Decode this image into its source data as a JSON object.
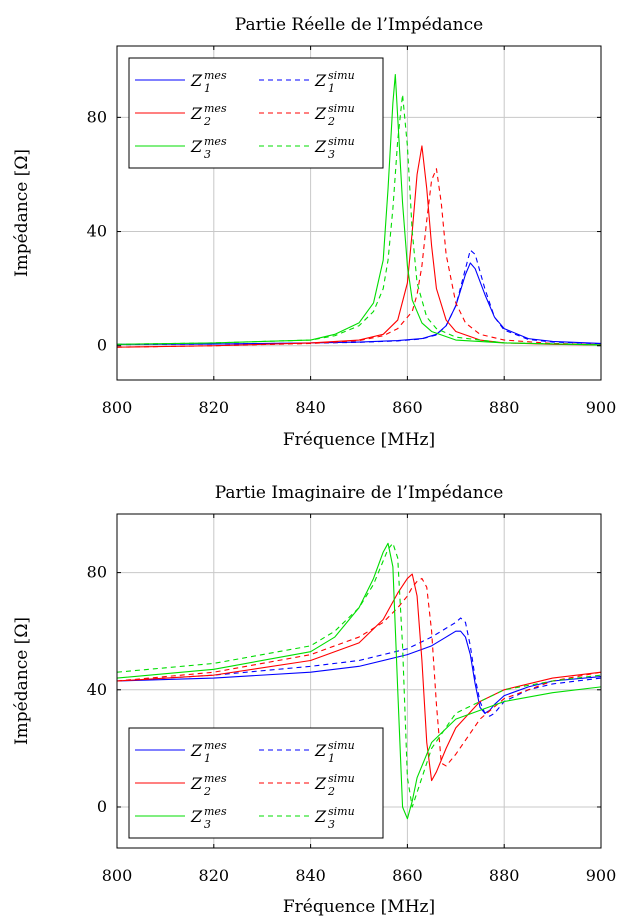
{
  "chart_data": [
    {
      "type": "line",
      "title": "Partie Réelle de l’Impédance",
      "xlabel": "Fréquence [MHz]",
      "ylabel": "Impédance [Ω]",
      "xlim": [
        800,
        900
      ],
      "ylim": [
        -12,
        105
      ],
      "xticks": [
        800,
        820,
        840,
        860,
        880,
        900
      ],
      "yticks": [
        0,
        40,
        80
      ],
      "grid": true,
      "legend_position": "top-left",
      "series": [
        {
          "name": "Z1mes",
          "color": "#0000ff",
          "dash": "solid",
          "x": [
            800,
            820,
            840,
            850,
            858,
            863,
            866,
            868,
            870,
            872,
            873,
            874,
            876,
            878,
            880,
            885,
            890,
            900
          ],
          "y": [
            0.5,
            0.6,
            1.0,
            1.3,
            1.8,
            2.5,
            4,
            7,
            14,
            25,
            29,
            27,
            18,
            10,
            6,
            2.5,
            1.5,
            0.8
          ]
        },
        {
          "name": "Z1simu",
          "color": "#0000ff",
          "dash": "dashed",
          "x": [
            800,
            820,
            840,
            850,
            858,
            863,
            866,
            868,
            870,
            872,
            873,
            874,
            876,
            878,
            880,
            885,
            890,
            900
          ],
          "y": [
            0.4,
            0.6,
            0.9,
            1.2,
            1.7,
            2.4,
            3.8,
            7,
            14,
            27,
            33.5,
            32,
            20,
            10,
            5.5,
            2.2,
            1.3,
            0.7
          ]
        },
        {
          "name": "Z2mes",
          "color": "#ff0000",
          "dash": "solid",
          "x": [
            800,
            820,
            840,
            850,
            855,
            858,
            860,
            861,
            862,
            863,
            864,
            865,
            866,
            868,
            870,
            875,
            880,
            890,
            900
          ],
          "y": [
            -0.5,
            0,
            1,
            2,
            4,
            9,
            22,
            40,
            60,
            70,
            55,
            35,
            20,
            9,
            5,
            2,
            1,
            0.5,
            0.3
          ]
        },
        {
          "name": "Z2simu",
          "color": "#ff0000",
          "dash": "dashed",
          "x": [
            800,
            820,
            840,
            850,
            855,
            858,
            861,
            862,
            863,
            864,
            865,
            866,
            867,
            868,
            870,
            872,
            875,
            880,
            890,
            900
          ],
          "y": [
            -0.5,
            0,
            0.8,
            1.8,
            3.5,
            6,
            12,
            18,
            28,
            44,
            58,
            62,
            50,
            32,
            15,
            8,
            4,
            2,
            0.8,
            0.4
          ]
        },
        {
          "name": "Z3mes",
          "color": "#00dd00",
          "dash": "solid",
          "x": [
            800,
            820,
            840,
            845,
            850,
            853,
            855,
            856,
            857,
            857.5,
            858,
            859,
            860,
            861,
            863,
            865,
            870,
            880,
            900
          ],
          "y": [
            0.5,
            1,
            2,
            4,
            8,
            15,
            30,
            55,
            85,
            95,
            80,
            50,
            28,
            16,
            8,
            5,
            2,
            1,
            0.3
          ]
        },
        {
          "name": "Z3simu",
          "color": "#00dd00",
          "dash": "dashed",
          "x": [
            800,
            820,
            840,
            845,
            850,
            853,
            855,
            856,
            857,
            858,
            859,
            860,
            861,
            862,
            864,
            866,
            870,
            880,
            900
          ],
          "y": [
            0.5,
            1,
            2,
            3.5,
            7,
            12,
            20,
            30,
            48,
            72,
            88,
            70,
            40,
            22,
            10,
            6,
            3,
            1,
            0.3
          ]
        }
      ]
    },
    {
      "type": "line",
      "title": "Partie Imaginaire de l’Impédance",
      "xlabel": "Fréquence [MHz]",
      "ylabel": "Impédance [Ω]",
      "xlim": [
        800,
        900
      ],
      "ylim": [
        -14,
        100
      ],
      "xticks": [
        800,
        820,
        840,
        860,
        880,
        900
      ],
      "yticks": [
        0,
        40,
        80
      ],
      "grid": true,
      "legend_position": "bottom-left",
      "series": [
        {
          "name": "Z1mes",
          "color": "#0000ff",
          "dash": "solid",
          "x": [
            800,
            820,
            840,
            850,
            860,
            865,
            868,
            870,
            871,
            872,
            873,
            874,
            875,
            876,
            877,
            878,
            880,
            885,
            890,
            900
          ],
          "y": [
            43,
            44,
            46,
            48,
            52,
            55,
            58,
            60,
            60,
            58,
            52,
            42,
            34,
            32,
            33,
            35,
            38,
            41,
            43,
            44.5
          ]
        },
        {
          "name": "Z1simu",
          "color": "#0000ff",
          "dash": "dashed",
          "x": [
            800,
            820,
            840,
            850,
            860,
            865,
            868,
            870,
            871,
            872,
            873,
            874,
            875,
            876,
            877,
            878,
            880,
            885,
            890,
            900
          ],
          "y": [
            43,
            45,
            48,
            50,
            54,
            58,
            61,
            63,
            64.5,
            63,
            55,
            44,
            36,
            32,
            31,
            32,
            36,
            40,
            42,
            44
          ]
        },
        {
          "name": "Z2mes",
          "color": "#ff0000",
          "dash": "solid",
          "x": [
            800,
            820,
            840,
            850,
            855,
            858,
            860,
            861,
            862,
            863,
            864,
            865,
            866,
            868,
            870,
            875,
            880,
            890,
            900
          ],
          "y": [
            43,
            45,
            50,
            56,
            64,
            73,
            78,
            79.5,
            72,
            50,
            22,
            9,
            12,
            20,
            27,
            36,
            40,
            44,
            46
          ]
        },
        {
          "name": "Z2simu",
          "color": "#ff0000",
          "dash": "dashed",
          "x": [
            800,
            820,
            840,
            850,
            855,
            858,
            860,
            861,
            862,
            863,
            864,
            865,
            866,
            867,
            868,
            870,
            875,
            880,
            890,
            900
          ],
          "y": [
            43,
            46,
            52,
            58,
            63,
            68,
            72,
            75,
            77,
            78,
            75,
            60,
            35,
            15,
            14,
            18,
            30,
            37,
            43,
            46
          ]
        },
        {
          "name": "Z3mes",
          "color": "#00dd00",
          "dash": "solid",
          "x": [
            800,
            820,
            840,
            845,
            850,
            853,
            855,
            856,
            857,
            858,
            859,
            860,
            861,
            862,
            865,
            870,
            880,
            890,
            900
          ],
          "y": [
            44,
            47,
            53,
            58,
            68,
            78,
            87,
            90,
            82,
            40,
            0,
            -4,
            2,
            10,
            22,
            30,
            36,
            39,
            41
          ]
        },
        {
          "name": "Z3simu",
          "color": "#00dd00",
          "dash": "dashed",
          "x": [
            800,
            820,
            840,
            845,
            850,
            853,
            855,
            856,
            857,
            858,
            859,
            860,
            861,
            862,
            865,
            870,
            880,
            890,
            900
          ],
          "y": [
            46,
            49,
            55,
            60,
            68,
            76,
            84,
            88,
            90,
            85,
            55,
            10,
            0,
            5,
            20,
            32,
            40,
            43,
            45
          ]
        }
      ]
    }
  ],
  "legend_labels": [
    {
      "base": "Z",
      "sub": "1",
      "sup": "mes"
    },
    {
      "base": "Z",
      "sub": "1",
      "sup": "simu"
    },
    {
      "base": "Z",
      "sub": "2",
      "sup": "mes"
    },
    {
      "base": "Z",
      "sub": "2",
      "sup": "simu"
    },
    {
      "base": "Z",
      "sub": "3",
      "sup": "mes"
    },
    {
      "base": "Z",
      "sub": "3",
      "sup": "simu"
    }
  ]
}
